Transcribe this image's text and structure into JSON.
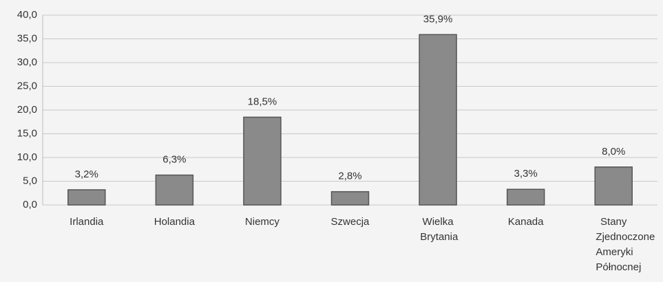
{
  "chart_data": {
    "type": "bar",
    "categories": [
      "Irlandia",
      "Holandia",
      "Niemcy",
      "Szwecja",
      "Wielka Brytania",
      "Kanada",
      "Stany Zjednoczone Ameryki Północnej"
    ],
    "values": [
      3.2,
      6.3,
      18.5,
      2.8,
      35.9,
      3.3,
      8.0
    ],
    "value_labels": [
      "3,2%",
      "6,3%",
      "18,5%",
      "2,8%",
      "35,9%",
      "3,3%",
      "8,0%"
    ],
    "color": "#8a8a8a",
    "ylim": [
      0,
      40
    ],
    "yticks": [
      {
        "value": 0,
        "label": "0,0"
      },
      {
        "value": 5,
        "label": "5,0"
      },
      {
        "value": 10,
        "label": "10,0"
      },
      {
        "value": 15,
        "label": "15,0"
      },
      {
        "value": 20,
        "label": "20,0"
      },
      {
        "value": 25,
        "label": "25,0"
      },
      {
        "value": 30,
        "label": "30,0"
      },
      {
        "value": 35,
        "label": "35,0"
      },
      {
        "value": 40,
        "label": "40,0"
      }
    ],
    "grid": true
  }
}
